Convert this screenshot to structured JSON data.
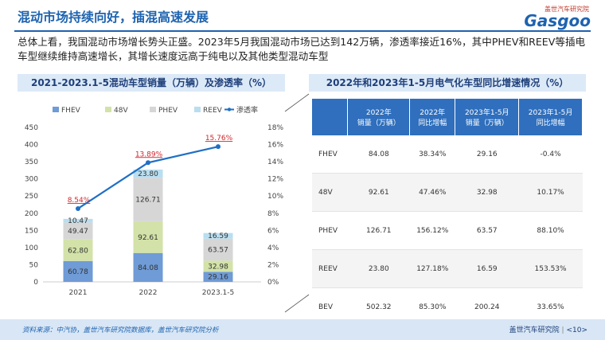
{
  "header": {
    "title": "混动市场持续向好，插混高速发展",
    "logo_cn": "盖世汽车研究院",
    "logo_en": "Gasgoo"
  },
  "summary": "总体上看，我国混动市场增长势头正盛。2023年5月我国混动市场已达到142万辆，渗透率接近16%，其中PHEV和REEV等插电车型继续维持高速增长，其增长速度远高于纯电以及其他类型混动车型",
  "left_panel": {
    "title": "2021-2023.1-5混动车型销量（万辆）及渗透率（%）"
  },
  "right_panel": {
    "title": "2022年和2023年1-5月电气化车型同比增速情况（%）"
  },
  "chart_data": {
    "type": "bar",
    "stacked": true,
    "categories": [
      "2021",
      "2022",
      "2023.1-5"
    ],
    "series": [
      {
        "name": "FHEV",
        "values": [
          60.78,
          84.08,
          29.16
        ],
        "color": "#6f9bd6"
      },
      {
        "name": "48V",
        "values": [
          62.8,
          92.61,
          32.98
        ],
        "color": "#d3e2a8"
      },
      {
        "name": "PHEV",
        "values": [
          49.47,
          126.71,
          63.57
        ],
        "color": "#d6d6d6"
      },
      {
        "name": "REEV",
        "values": [
          10.47,
          23.8,
          16.59
        ],
        "color": "#b9def0"
      }
    ],
    "line": {
      "name": "渗透率",
      "values": [
        8.54,
        13.89,
        15.76
      ],
      "labels": [
        "8.54%",
        "13.89%",
        "15.76%"
      ],
      "color": "#1f6fc5"
    },
    "y_left": {
      "ticks": [
        0,
        50,
        100,
        150,
        200,
        250,
        300,
        350,
        400,
        450
      ],
      "ylim": [
        0,
        450
      ]
    },
    "y_right": {
      "ticks": [
        "0%",
        "2%",
        "4%",
        "6%",
        "8%",
        "10%",
        "12%",
        "14%",
        "16%",
        "18%"
      ],
      "ylim": [
        0,
        18
      ]
    },
    "legend": "top"
  },
  "table": {
    "headers": [
      "",
      "2022年\n销量（万辆）",
      "2022年\n同比增幅",
      "2023年1-5月\n销量（万辆）",
      "2023年1-5月\n同比增幅"
    ],
    "rows": [
      {
        "label": "FHEV",
        "cells": [
          "84.08",
          "38.34%",
          "29.16",
          "-0.4%"
        ],
        "red": [
          false,
          false,
          false,
          false
        ]
      },
      {
        "label": "48V",
        "cells": [
          "92.61",
          "47.46%",
          "32.98",
          "10.17%"
        ],
        "red": [
          false,
          false,
          false,
          false
        ]
      },
      {
        "label": "PHEV",
        "cells": [
          "126.71",
          "156.12%",
          "63.57",
          "88.10%"
        ],
        "red": [
          false,
          true,
          false,
          true
        ]
      },
      {
        "label": "REEV",
        "cells": [
          "23.80",
          "127.18%",
          "16.59",
          "153.53%"
        ],
        "red": [
          false,
          true,
          false,
          true
        ]
      },
      {
        "label": "BEV",
        "cells": [
          "502.32",
          "85.30%",
          "200.24",
          "33.65%"
        ],
        "red": [
          false,
          false,
          false,
          false
        ]
      }
    ]
  },
  "footer": {
    "source": "资料来源：中汽协，盖世汽车研究院数据库，盖世汽车研究院分析",
    "org": "盖世汽车研究院",
    "page": "<10>"
  }
}
